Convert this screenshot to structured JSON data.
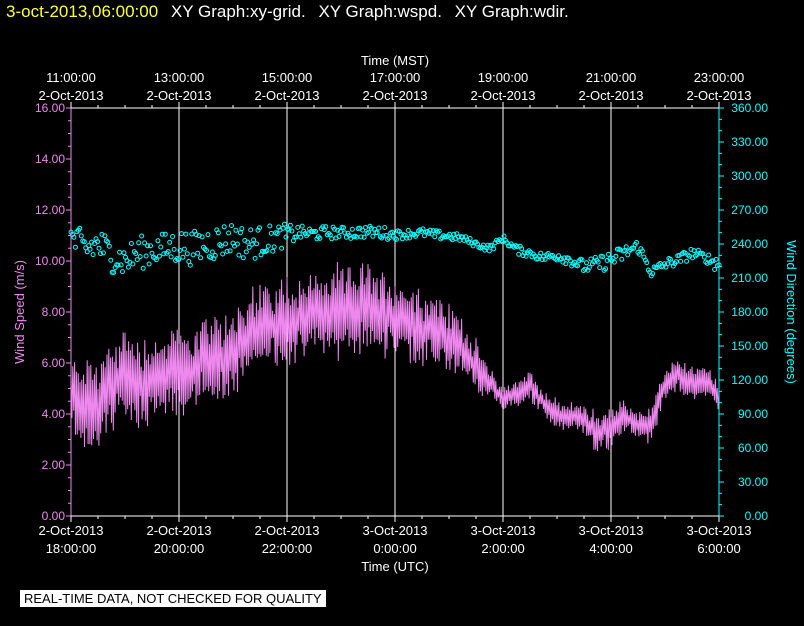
{
  "header": {
    "timestamp": "3-oct-2013,06:00:00",
    "graph_titles": [
      "XY Graph:xy-grid.",
      "XY Graph:wspd.",
      "XY Graph:wdir."
    ]
  },
  "banner": "REAL-TIME DATA, NOT CHECKED FOR QUALITY",
  "colors": {
    "grid": "#ffffff",
    "wspd": "#ee88ee",
    "wdir": "#00ffff",
    "timestamp": "#ffff33"
  },
  "chart_data": {
    "type": "line",
    "top_axis": {
      "label": "Time (MST)",
      "tick_hours": [
        0,
        2,
        4,
        6,
        8,
        10,
        12
      ],
      "ticks": [
        {
          "time": "11:00:00",
          "date": "2-Oct-2013"
        },
        {
          "time": "13:00:00",
          "date": "2-Oct-2013"
        },
        {
          "time": "15:00:00",
          "date": "2-Oct-2013"
        },
        {
          "time": "17:00:00",
          "date": "2-Oct-2013"
        },
        {
          "time": "19:00:00",
          "date": "2-Oct-2013"
        },
        {
          "time": "21:00:00",
          "date": "2-Oct-2013"
        },
        {
          "time": "23:00:00",
          "date": "2-Oct-2013"
        }
      ]
    },
    "bottom_axis": {
      "label": "Time (UTC)",
      "tick_hours": [
        0,
        2,
        4,
        6,
        8,
        10,
        12
      ],
      "ticks": [
        {
          "date": "2-Oct-2013",
          "time": "18:00:00"
        },
        {
          "date": "2-Oct-2013",
          "time": "20:00:00"
        },
        {
          "date": "2-Oct-2013",
          "time": "22:00:00"
        },
        {
          "date": "3-Oct-2013",
          "time": "0:00:00"
        },
        {
          "date": "3-Oct-2013",
          "time": "2:00:00"
        },
        {
          "date": "3-Oct-2013",
          "time": "4:00:00"
        },
        {
          "date": "3-Oct-2013",
          "time": "6:00:00"
        }
      ]
    },
    "x_range_hours": [
      0,
      12
    ],
    "left_axis": {
      "label": "Wind Speed (m/s)",
      "range": [
        0,
        16
      ],
      "tick_values": [
        0,
        2,
        4,
        6,
        8,
        10,
        12,
        14,
        16
      ],
      "tick_labels": [
        "0.00",
        "2.00",
        "4.00",
        "6.00",
        "8.00",
        "10.00",
        "12.00",
        "14.00",
        "16.00"
      ]
    },
    "right_axis": {
      "label": "Wind Direction (degrees)",
      "range": [
        0,
        360
      ],
      "tick_values": [
        0,
        30,
        60,
        90,
        120,
        150,
        180,
        210,
        240,
        270,
        300,
        330,
        360
      ],
      "tick_labels": [
        "0.00",
        "30.00",
        "60.00",
        "90.00",
        "120.00",
        "150.00",
        "180.00",
        "210.00",
        "240.00",
        "270.00",
        "300.00",
        "330.00",
        "360.00"
      ]
    },
    "series": [
      {
        "name": "Wind Speed",
        "axis": "left",
        "style": "line",
        "x": [
          0,
          0.25,
          0.5,
          0.75,
          1,
          1.25,
          1.5,
          1.75,
          2,
          2.25,
          2.5,
          2.75,
          3,
          3.25,
          3.5,
          3.75,
          4,
          4.25,
          4.5,
          4.75,
          5,
          5.25,
          5.5,
          5.75,
          6,
          6.25,
          6.5,
          6.75,
          7,
          7.25,
          7.5,
          7.75,
          8,
          8.25,
          8.5,
          8.75,
          9,
          9.25,
          9.5,
          9.75,
          10,
          10.25,
          10.5,
          10.75,
          11,
          11.25,
          11.5,
          11.75,
          12
        ],
        "mean": [
          4.6,
          4.5,
          4.4,
          5.0,
          5.5,
          5.2,
          5.3,
          5.6,
          5.5,
          5.8,
          6.0,
          6.1,
          6.5,
          7.0,
          7.3,
          7.5,
          7.7,
          7.8,
          7.9,
          8.0,
          8.0,
          8.1,
          8.3,
          8.0,
          7.8,
          7.6,
          7.4,
          7.3,
          7.0,
          6.6,
          5.9,
          5.2,
          4.6,
          4.8,
          5.1,
          4.4,
          4.0,
          3.9,
          3.8,
          3.2,
          3.5,
          3.9,
          3.6,
          3.5,
          5.2,
          5.6,
          5.2,
          5.3,
          4.7
        ],
        "amplitude": [
          1.4,
          1.7,
          1.6,
          1.7,
          1.8,
          1.8,
          1.6,
          1.5,
          1.7,
          1.6,
          1.6,
          1.5,
          1.6,
          1.7,
          1.7,
          1.6,
          1.6,
          1.5,
          1.5,
          1.6,
          1.6,
          1.6,
          1.5,
          1.5,
          1.5,
          1.4,
          1.4,
          1.3,
          1.2,
          1.1,
          0.9,
          0.6,
          0.5,
          0.5,
          0.6,
          0.5,
          0.5,
          0.5,
          0.6,
          0.8,
          0.7,
          0.6,
          0.6,
          0.6,
          0.6,
          0.6,
          0.6,
          0.6,
          0.5
        ],
        "unit": "m/s"
      },
      {
        "name": "Wind Direction",
        "axis": "right",
        "style": "points",
        "x": [
          0,
          0.25,
          0.5,
          0.75,
          1,
          1.25,
          1.5,
          1.75,
          2,
          2.25,
          2.5,
          2.75,
          3,
          3.25,
          3.5,
          3.75,
          4,
          4.25,
          4.5,
          4.75,
          5,
          5.25,
          5.5,
          5.75,
          6,
          6.25,
          6.5,
          6.75,
          7,
          7.25,
          7.5,
          7.75,
          8,
          8.25,
          8.5,
          8.75,
          9,
          9.25,
          9.5,
          9.75,
          10,
          10.25,
          10.5,
          10.75,
          11,
          11.25,
          11.5,
          11.75,
          12
        ],
        "mean": [
          245,
          235,
          240,
          230,
          225,
          232,
          235,
          236,
          238,
          236,
          240,
          242,
          246,
          240,
          242,
          245,
          248,
          250,
          249,
          250,
          250,
          250,
          251,
          250,
          248,
          249,
          250,
          248,
          247,
          245,
          240,
          236,
          245,
          235,
          232,
          228,
          230,
          226,
          220,
          222,
          226,
          232,
          238,
          215,
          222,
          226,
          232,
          228,
          222
        ],
        "amplitude": [
          15,
          16,
          16,
          15,
          14,
          15,
          14,
          14,
          16,
          15,
          16,
          16,
          14,
          15,
          14,
          12,
          10,
          6,
          6,
          6,
          5,
          6,
          5,
          6,
          4,
          4,
          4,
          4,
          4,
          3,
          3,
          3,
          3,
          4,
          4,
          4,
          5,
          5,
          6,
          7,
          8,
          7,
          6,
          5,
          5,
          5,
          5,
          4,
          8
        ],
        "unit": "degrees"
      }
    ],
    "grid": true
  }
}
